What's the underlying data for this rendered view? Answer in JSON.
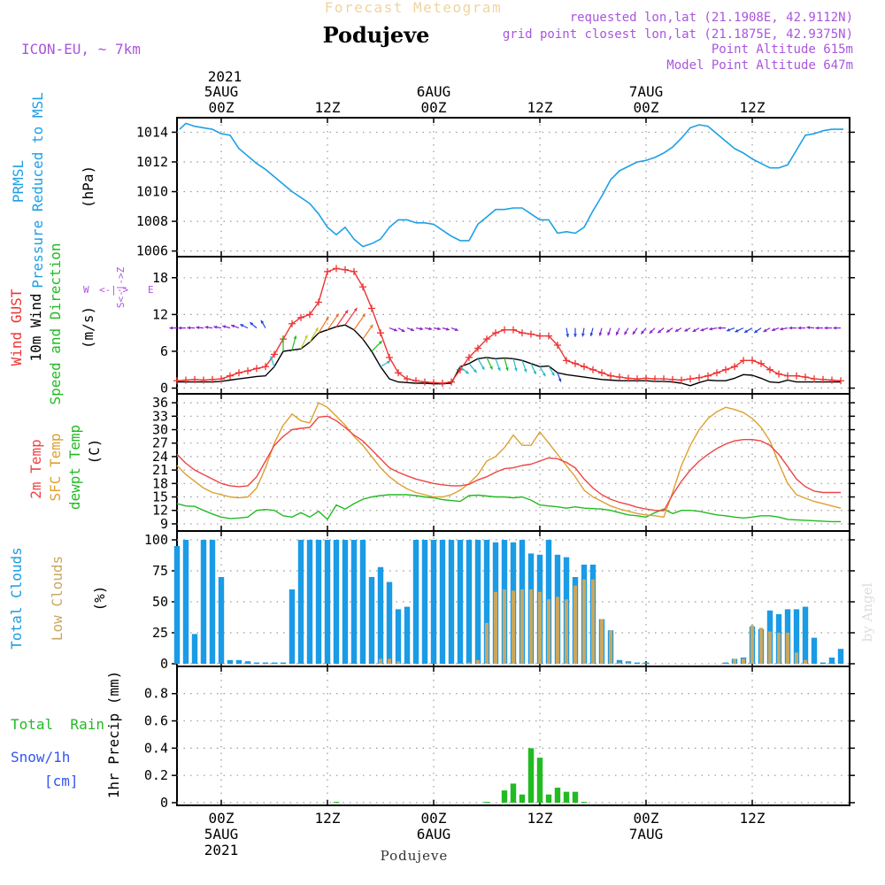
{
  "header": {
    "forecast_title": "Forecast Meteogram",
    "location": "Podujeve",
    "model": "ICON-EU,  ~ 7km",
    "requested": "requested lon,lat (21.1908E, 42.9112N)",
    "grid_point": "grid point closest lon,lat (21.1875E, 42.9375N)",
    "point_altitude": "Point Altitude 615m",
    "model_altitude": "Model Point Altitude 647m"
  },
  "time_axis": {
    "top_year": "2021",
    "top_ticks": [
      {
        "hour": 0,
        "line1": "5AUG",
        "line2": "00Z"
      },
      {
        "hour": 12,
        "line1": "",
        "line2": "12Z"
      },
      {
        "hour": 24,
        "line1": "6AUG",
        "line2": "00Z"
      },
      {
        "hour": 36,
        "line1": "",
        "line2": "12Z"
      },
      {
        "hour": 48,
        "line1": "7AUG",
        "line2": "00Z"
      },
      {
        "hour": 60,
        "line1": "",
        "line2": "12Z"
      }
    ],
    "bottom_ticks": [
      {
        "hour": 0,
        "line1": "00Z",
        "line2": "5AUG",
        "line3": "2021"
      },
      {
        "hour": 12,
        "line1": "12Z",
        "line2": "",
        "line3": ""
      },
      {
        "hour": 24,
        "line1": "00Z",
        "line2": "6AUG",
        "line3": ""
      },
      {
        "hour": 36,
        "line1": "12Z",
        "line2": "",
        "line3": ""
      },
      {
        "hour": 48,
        "line1": "00Z",
        "line2": "7AUG",
        "line3": ""
      },
      {
        "hour": 60,
        "line1": "12Z",
        "line2": "",
        "line3": ""
      }
    ],
    "xlim": [
      -5,
      71
    ],
    "footer": "Podujeve"
  },
  "credit": "by Angel",
  "colors": {
    "pressure": "#1ea0e6",
    "gust": "#ee3333",
    "wind": "#000000",
    "direction": "#22bb22",
    "temp": "#ee4444",
    "sfc": "#dda030",
    "dewpt": "#22bb22",
    "clouds_total": "#1a9be6",
    "clouds_low": "#c8a860",
    "rain": "#22bb22",
    "snow": "#3355ee",
    "purple": "#aa55dd",
    "forecast_title": "#f0d4a0"
  },
  "chart_data": [
    {
      "type": "line",
      "name": "pressure",
      "label1": "PRMSL",
      "label2": "Pressure Reduced to MSL",
      "unit": "(hPa)",
      "ylim": [
        1005.8,
        1014.8
      ],
      "yticks": [
        1006,
        1008,
        1010,
        1012,
        1014
      ],
      "x": [
        -4.7,
        -4,
        -3,
        -2,
        -1,
        0,
        1,
        2,
        3,
        4,
        5,
        6,
        7,
        8,
        9,
        10,
        11,
        12,
        13,
        14,
        15,
        16,
        17,
        18,
        19,
        20,
        21,
        22,
        23,
        24,
        25,
        26,
        27,
        28,
        29,
        30,
        31,
        32,
        33,
        34,
        35,
        36,
        37,
        38,
        39,
        40,
        41,
        42,
        43,
        44,
        45,
        46,
        47,
        48,
        49,
        50,
        51,
        52,
        53,
        54,
        55,
        56,
        57,
        58,
        59,
        60,
        61,
        62,
        63,
        64,
        65,
        66,
        67,
        68,
        69,
        70.3
      ],
      "values": [
        1014.2,
        1014.6,
        1014.4,
        1014.3,
        1014.2,
        1013.9,
        1013.8,
        1012.9,
        1012.4,
        1011.9,
        1011.5,
        1011.0,
        1010.5,
        1010.0,
        1009.6,
        1009.2,
        1008.5,
        1007.6,
        1007.1,
        1007.6,
        1006.8,
        1006.3,
        1006.5,
        1006.8,
        1007.6,
        1008.1,
        1008.1,
        1007.9,
        1007.9,
        1007.8,
        1007.4,
        1007.0,
        1006.7,
        1006.7,
        1007.8,
        1008.3,
        1008.8,
        1008.8,
        1008.9,
        1008.9,
        1008.5,
        1008.1,
        1008.1,
        1007.2,
        1007.3,
        1007.2,
        1007.6,
        1008.7,
        1009.7,
        1010.8,
        1011.4,
        1011.7,
        1012.0,
        1012.1,
        1012.3,
        1012.6,
        1013.0,
        1013.6,
        1014.3,
        1014.5,
        1014.4,
        1013.9,
        1013.4,
        1012.9,
        1012.6,
        1012.2,
        1011.9,
        1011.6,
        1011.6,
        1011.8,
        1012.8,
        1013.8,
        1013.9,
        1014.1,
        1014.2,
        1014.2
      ]
    },
    {
      "type": "line",
      "name": "wind",
      "label_gust": "Wind GUST",
      "label_wind": "10m Wind",
      "label_dir": "Speed and Direction",
      "unit": "(m/s)",
      "compass": {
        "north": "N",
        "south": "S",
        "east": "E",
        "west": "W",
        "arrows": "<-|->",
        "cross": "S<-|->Z"
      },
      "ylim": [
        -0.5,
        21
      ],
      "yticks": [
        0,
        6,
        12,
        18
      ],
      "x": [
        -5,
        -4,
        -3,
        -2,
        -1,
        0,
        1,
        2,
        3,
        4,
        5,
        6,
        7,
        8,
        9,
        10,
        11,
        12,
        13,
        14,
        15,
        16,
        17,
        18,
        19,
        20,
        21,
        22,
        23,
        24,
        25,
        26,
        27,
        28,
        29,
        30,
        31,
        32,
        33,
        34,
        35,
        36,
        37,
        38,
        39,
        40,
        41,
        42,
        43,
        44,
        45,
        46,
        47,
        48,
        49,
        50,
        51,
        52,
        53,
        54,
        55,
        56,
        57,
        58,
        59,
        60,
        61,
        62,
        63,
        64,
        65,
        66,
        67,
        68,
        69,
        70
      ],
      "gust": [
        1.2,
        1.3,
        1.4,
        1.3,
        1.4,
        1.5,
        2.0,
        2.5,
        2.8,
        3.2,
        3.5,
        5.5,
        8.0,
        10.5,
        11.5,
        12.0,
        14.0,
        19.0,
        19.5,
        19.3,
        19.0,
        16.5,
        13.0,
        9.0,
        5.0,
        2.5,
        1.5,
        1.2,
        1.0,
        0.9,
        0.8,
        1.0,
        3.0,
        5.0,
        6.5,
        8.0,
        9.0,
        9.5,
        9.5,
        9.0,
        8.8,
        8.5,
        8.5,
        7.0,
        4.5,
        4.0,
        3.5,
        3.0,
        2.5,
        2.0,
        1.8,
        1.6,
        1.5,
        1.6,
        1.5,
        1.5,
        1.4,
        1.3,
        1.5,
        1.7,
        2.0,
        2.5,
        3.0,
        3.5,
        4.5,
        4.5,
        4.0,
        3.0,
        2.3,
        2.0,
        2.0,
        1.8,
        1.5,
        1.4,
        1.3,
        1.2
      ],
      "wind": [
        1.0,
        1.0,
        1.0,
        1.0,
        1.0,
        1.1,
        1.3,
        1.5,
        1.7,
        1.9,
        2.0,
        3.5,
        6.0,
        6.2,
        6.4,
        7.5,
        9.0,
        9.5,
        10.0,
        10.3,
        9.5,
        8.0,
        6.0,
        3.5,
        1.5,
        1.0,
        0.9,
        0.8,
        0.8,
        0.7,
        0.7,
        0.8,
        3.5,
        4.0,
        4.8,
        5.0,
        4.8,
        4.9,
        4.8,
        4.5,
        4.0,
        3.5,
        3.6,
        2.5,
        2.2,
        2.0,
        1.8,
        1.6,
        1.4,
        1.3,
        1.2,
        1.2,
        1.2,
        1.2,
        1.1,
        1.1,
        1.0,
        0.8,
        0.4,
        0.9,
        1.3,
        1.2,
        1.2,
        1.6,
        2.2,
        2.1,
        1.6,
        1.0,
        0.9,
        1.3,
        1.0,
        1.0,
        1.0,
        1.0,
        1.0,
        1.0
      ],
      "dir_x": [
        -5,
        -4,
        -3,
        -2,
        -1,
        0,
        1,
        2,
        3,
        4,
        5,
        6,
        7,
        8,
        9,
        10,
        11,
        12,
        13,
        14,
        15,
        16,
        17,
        18,
        19,
        20,
        21,
        22,
        23,
        24,
        25,
        26,
        27,
        28,
        29,
        30,
        31,
        32,
        33,
        34,
        35,
        36,
        37,
        38,
        39,
        40,
        41,
        42,
        43,
        44,
        45,
        46,
        47,
        48,
        49,
        50,
        51,
        52,
        53,
        54,
        55,
        56,
        57,
        58,
        59,
        60,
        61,
        62,
        63,
        64,
        65,
        66,
        67,
        68,
        69,
        70
      ],
      "dir_deg": [
        90,
        90,
        92,
        95,
        98,
        100,
        105,
        110,
        115,
        130,
        150,
        160,
        180,
        195,
        205,
        210,
        212,
        215,
        215,
        215,
        215,
        215,
        225,
        240,
        290,
        300,
        290,
        280,
        280,
        280,
        285,
        290,
        310,
        320,
        330,
        335,
        340,
        345,
        345,
        340,
        335,
        330,
        330,
        340,
        350,
        0,
        10,
        15,
        15,
        20,
        25,
        30,
        35,
        40,
        45,
        50,
        55,
        60,
        60,
        60,
        70,
        80,
        90,
        70,
        65,
        60,
        55,
        60,
        70,
        80,
        90,
        90,
        95,
        90,
        90,
        90
      ]
    },
    {
      "type": "line",
      "name": "temperature",
      "label_temp": "2m Temp",
      "label_sfc": "SFC Temp",
      "label_dewpt": "dewpt Temp",
      "unit": "(C)",
      "ylim": [
        8,
        37.4
      ],
      "yticks": [
        9,
        12,
        15,
        18,
        21,
        24,
        27,
        30,
        33,
        36
      ],
      "x": [
        -5,
        -4,
        -3,
        -2,
        -1,
        0,
        1,
        2,
        3,
        4,
        5,
        6,
        7,
        8,
        9,
        10,
        11,
        12,
        13,
        14,
        15,
        16,
        17,
        18,
        19,
        20,
        21,
        22,
        23,
        24,
        25,
        26,
        27,
        28,
        29,
        30,
        31,
        32,
        33,
        34,
        35,
        36,
        37,
        38,
        39,
        40,
        41,
        42,
        43,
        44,
        45,
        46,
        47,
        48,
        49,
        50,
        51,
        52,
        53,
        54,
        55,
        56,
        57,
        58,
        59,
        60,
        61,
        62,
        63,
        64,
        65,
        66,
        67,
        68,
        69,
        70
      ],
      "temp": [
        24.5,
        22.5,
        21.0,
        20.0,
        19.0,
        18.0,
        17.5,
        17.3,
        17.5,
        19.5,
        23.0,
        26.5,
        28.5,
        30.0,
        30.3,
        30.5,
        32.8,
        33.0,
        32.0,
        30.5,
        28.8,
        27.5,
        25.5,
        23.5,
        21.5,
        20.5,
        19.7,
        19.0,
        18.5,
        18.0,
        17.7,
        17.5,
        17.5,
        17.8,
        18.8,
        19.5,
        20.5,
        21.3,
        21.5,
        22.0,
        22.3,
        23.0,
        23.7,
        23.5,
        22.7,
        21.5,
        19.0,
        17.0,
        15.5,
        14.5,
        13.8,
        13.3,
        12.7,
        12.3,
        12.0,
        11.9,
        15.5,
        18.5,
        21.0,
        23.0,
        24.5,
        25.8,
        26.8,
        27.5,
        27.8,
        27.8,
        27.5,
        26.5,
        24.5,
        21.8,
        19.0,
        17.3,
        16.3,
        16.0,
        16.0,
        16.0
      ],
      "sfc": [
        22.0,
        20.0,
        18.5,
        17.0,
        16.0,
        15.5,
        15.0,
        14.8,
        15.0,
        17.0,
        21.5,
        27.0,
        31.0,
        33.5,
        32.0,
        31.5,
        36.0,
        35.0,
        33.0,
        31.0,
        28.5,
        26.5,
        24.0,
        21.5,
        19.5,
        18.0,
        16.8,
        16.0,
        15.5,
        15.0,
        15.0,
        15.5,
        16.5,
        18.0,
        20.0,
        23.0,
        24.0,
        26.0,
        28.8,
        26.5,
        26.5,
        29.5,
        27.0,
        24.5,
        22.0,
        19.5,
        16.5,
        15.0,
        14.0,
        13.0,
        12.3,
        11.8,
        11.3,
        11.0,
        10.8,
        10.5,
        16.0,
        22.0,
        26.5,
        30.0,
        32.5,
        34.0,
        35.0,
        34.5,
        33.8,
        32.5,
        30.5,
        27.5,
        22.5,
        18.0,
        15.5,
        14.7,
        14.0,
        13.5,
        13.0,
        12.5
      ],
      "dewpt": [
        13.5,
        13.0,
        12.9,
        12.0,
        11.2,
        10.5,
        10.2,
        10.3,
        10.5,
        12.0,
        12.2,
        12.0,
        10.8,
        10.5,
        11.5,
        10.5,
        11.8,
        10.0,
        13.2,
        12.3,
        13.5,
        14.5,
        15.0,
        15.3,
        15.5,
        15.5,
        15.5,
        15.3,
        15.0,
        14.8,
        14.4,
        14.2,
        14.0,
        15.3,
        15.4,
        15.2,
        15.0,
        15.0,
        14.8,
        15.0,
        14.3,
        13.2,
        13.0,
        12.8,
        12.5,
        12.8,
        12.5,
        12.4,
        12.3,
        12.0,
        11.5,
        11.0,
        10.8,
        10.5,
        11.5,
        12.3,
        11.3,
        12.0,
        12.0,
        11.8,
        11.4,
        11.0,
        10.8,
        10.5,
        10.3,
        10.5,
        10.8,
        10.8,
        10.5,
        10.0,
        9.9,
        9.8,
        9.7,
        9.6,
        9.5,
        9.5
      ]
    },
    {
      "type": "bar",
      "name": "clouds",
      "label_total": "Total Clouds",
      "label_low": "Low Clouds",
      "unit": "(%)",
      "ylim": [
        0,
        105
      ],
      "yticks": [
        0,
        25,
        50,
        75,
        100
      ],
      "x": [
        -5,
        -4,
        -3,
        -2,
        -1,
        0,
        1,
        2,
        3,
        4,
        5,
        6,
        7,
        8,
        9,
        10,
        11,
        12,
        13,
        14,
        15,
        16,
        17,
        18,
        19,
        20,
        21,
        22,
        23,
        24,
        25,
        26,
        27,
        28,
        29,
        30,
        31,
        32,
        33,
        34,
        35,
        36,
        37,
        38,
        39,
        40,
        41,
        42,
        43,
        44,
        45,
        46,
        47,
        48,
        49,
        50,
        51,
        52,
        53,
        54,
        55,
        56,
        57,
        58,
        59,
        60,
        61,
        62,
        63,
        64,
        65,
        66,
        67,
        68,
        69,
        70
      ],
      "total": [
        95,
        100,
        24,
        100,
        100,
        70,
        3,
        3,
        2,
        1,
        1,
        1,
        1,
        60,
        100,
        100,
        100,
        100,
        100,
        100,
        100,
        100,
        70,
        78,
        66,
        44,
        46,
        100,
        100,
        100,
        100,
        100,
        100,
        100,
        100,
        100,
        98,
        100,
        98,
        100,
        89,
        88,
        100,
        88,
        86,
        70,
        80,
        80,
        36,
        27,
        3,
        2,
        1,
        1,
        0,
        0,
        0,
        0,
        0,
        0,
        0,
        0,
        1,
        4,
        5,
        30,
        28,
        43,
        40,
        44,
        44,
        46,
        21,
        1,
        5,
        12
      ],
      "low": [
        0,
        0,
        0,
        0,
        0,
        0,
        0,
        0,
        0,
        0,
        0,
        0,
        0,
        0,
        0,
        0,
        0,
        0,
        0,
        0,
        0,
        0,
        0,
        4,
        4,
        2,
        0,
        0,
        0,
        0,
        0,
        0,
        0,
        1,
        3,
        33,
        58,
        60,
        59,
        60,
        60,
        58,
        52,
        54,
        52,
        63,
        68,
        68,
        36,
        27,
        1,
        1,
        0,
        0,
        0,
        0,
        0,
        0,
        0,
        0,
        0,
        0,
        0,
        4,
        4,
        31,
        29,
        26,
        25,
        25,
        9,
        3,
        0,
        0,
        0,
        0
      ]
    },
    {
      "type": "bar",
      "name": "precipitation",
      "label_rain": "Total  Rain",
      "label_snow": "Snow/1h",
      "label_cm": "[cm]",
      "unit": "1hr Precip (mm)",
      "ylim": [
        0,
        0.98
      ],
      "yticks": [
        0,
        0.2,
        0.4,
        0.6,
        0.8
      ],
      "ytick_labels": [
        "0",
        "0.2",
        "0.4",
        "0.6",
        "0.8"
      ],
      "x": [
        13,
        30,
        32,
        33,
        34,
        35,
        36,
        37,
        38,
        39,
        40,
        41
      ],
      "values": [
        0.005,
        0.002,
        0.09,
        0.14,
        0.06,
        0.4,
        0.33,
        0.06,
        0.11,
        0.08,
        0.08,
        0.004
      ]
    }
  ]
}
